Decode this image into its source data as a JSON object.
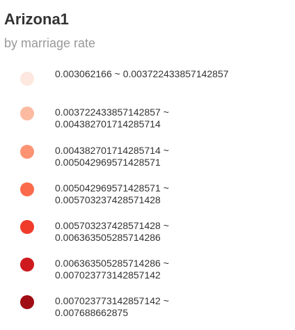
{
  "legend": {
    "title": "Arizona1",
    "subtitle": "by marriage rate",
    "items": [
      {
        "line1": "0.003062166 ~ 0.003722433857142857",
        "line2": "",
        "color": "#fde7de"
      },
      {
        "line1": "0.003722433857142857 ~",
        "line2": "0.004382701714285714",
        "color": "#fcbba1"
      },
      {
        "line1": "0.004382701714285714 ~",
        "line2": "0.005042969571428571",
        "color": "#fc9474"
      },
      {
        "line1": "0.005042969571428571 ~",
        "line2": "0.005703237428571428",
        "color": "#fb6b4b"
      },
      {
        "line1": "0.005703237428571428 ~",
        "line2": "0.006363505285714286",
        "color": "#f03b2b"
      },
      {
        "line1": "0.006363505285714286 ~",
        "line2": "0.007023773142857142",
        "color": "#ce1a1e"
      },
      {
        "line1": "0.007023773142857142 ~",
        "line2": "0.007688662875",
        "color": "#a00d15"
      }
    ]
  }
}
